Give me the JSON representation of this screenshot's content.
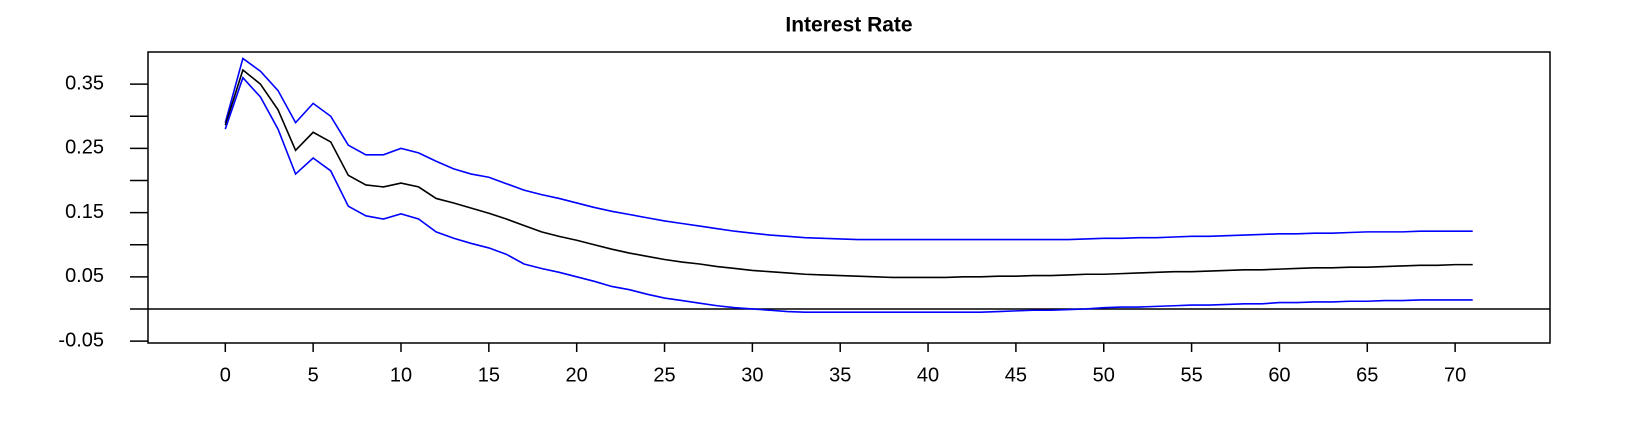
{
  "chart_data": {
    "type": "line",
    "title": "Interest Rate",
    "x": [
      0,
      1,
      2,
      3,
      4,
      5,
      6,
      7,
      8,
      9,
      10,
      11,
      12,
      13,
      14,
      15,
      16,
      17,
      18,
      19,
      20,
      21,
      22,
      23,
      24,
      25,
      26,
      27,
      28,
      29,
      30,
      31,
      32,
      33,
      34,
      35,
      36,
      37,
      38,
      39,
      40,
      41,
      42,
      43,
      44,
      45,
      46,
      47,
      48,
      49,
      50,
      51,
      52,
      53,
      54,
      55,
      56,
      57,
      58,
      59,
      60,
      61,
      62,
      63,
      64,
      65,
      66,
      67,
      68,
      69,
      70,
      71
    ],
    "series": [
      {
        "color": "#0000ff",
        "values": [
          0.29,
          0.39,
          0.37,
          0.34,
          0.29,
          0.32,
          0.3,
          0.255,
          0.24,
          0.24,
          0.25,
          0.243,
          0.23,
          0.218,
          0.21,
          0.205,
          0.195,
          0.185,
          0.178,
          0.172,
          0.165,
          0.158,
          0.152,
          0.147,
          0.142,
          0.137,
          0.133,
          0.129,
          0.125,
          0.121,
          0.118,
          0.115,
          0.113,
          0.111,
          0.11,
          0.109,
          0.108,
          0.108,
          0.108,
          0.108,
          0.108,
          0.108,
          0.108,
          0.108,
          0.108,
          0.108,
          0.108,
          0.108,
          0.108,
          0.109,
          0.11,
          0.11,
          0.111,
          0.111,
          0.112,
          0.113,
          0.113,
          0.114,
          0.115,
          0.116,
          0.117,
          0.117,
          0.118,
          0.118,
          0.119,
          0.12,
          0.12,
          0.12,
          0.121,
          0.121,
          0.121,
          0.121
        ]
      },
      {
        "color": "#000000",
        "values": [
          0.286,
          0.372,
          0.35,
          0.31,
          0.247,
          0.275,
          0.26,
          0.208,
          0.193,
          0.19,
          0.196,
          0.19,
          0.172,
          0.165,
          0.157,
          0.149,
          0.14,
          0.13,
          0.12,
          0.113,
          0.107,
          0.1,
          0.093,
          0.087,
          0.082,
          0.077,
          0.073,
          0.07,
          0.066,
          0.063,
          0.06,
          0.058,
          0.056,
          0.054,
          0.053,
          0.052,
          0.051,
          0.05,
          0.049,
          0.049,
          0.049,
          0.049,
          0.05,
          0.05,
          0.051,
          0.051,
          0.052,
          0.052,
          0.053,
          0.054,
          0.054,
          0.055,
          0.056,
          0.057,
          0.058,
          0.058,
          0.059,
          0.06,
          0.061,
          0.061,
          0.062,
          0.063,
          0.064,
          0.064,
          0.065,
          0.065,
          0.066,
          0.067,
          0.068,
          0.068,
          0.069,
          0.069
        ]
      },
      {
        "color": "#0000ff",
        "values": [
          0.28,
          0.36,
          0.33,
          0.28,
          0.21,
          0.235,
          0.215,
          0.16,
          0.145,
          0.14,
          0.148,
          0.14,
          0.12,
          0.11,
          0.102,
          0.095,
          0.085,
          0.07,
          0.063,
          0.057,
          0.05,
          0.043,
          0.035,
          0.03,
          0.023,
          0.017,
          0.013,
          0.009,
          0.005,
          0.002,
          0,
          -0.002,
          -0.004,
          -0.005,
          -0.005,
          -0.005,
          -0.005,
          -0.005,
          -0.005,
          -0.005,
          -0.005,
          -0.005,
          -0.005,
          -0.005,
          -0.004,
          -0.003,
          -0.002,
          -0.002,
          -0.001,
          0,
          0.002,
          0.003,
          0.003,
          0.004,
          0.005,
          0.006,
          0.006,
          0.007,
          0.008,
          0.008,
          0.01,
          0.01,
          0.011,
          0.011,
          0.012,
          0.012,
          0.013,
          0.013,
          0.014,
          0.014,
          0.014,
          0.014
        ]
      }
    ],
    "xlim": [
      -4.4,
      75.4
    ],
    "xticks": [
      0,
      5,
      10,
      15,
      20,
      25,
      30,
      35,
      40,
      45,
      50,
      55,
      60,
      65,
      70
    ],
    "ylim": [
      -0.053,
      0.4
    ],
    "yticks": [
      -0.05,
      0.05,
      0.15,
      0.25,
      0.35
    ],
    "yticks_minor": [
      0,
      0.1,
      0.2,
      0.3
    ],
    "hline": 0
  }
}
